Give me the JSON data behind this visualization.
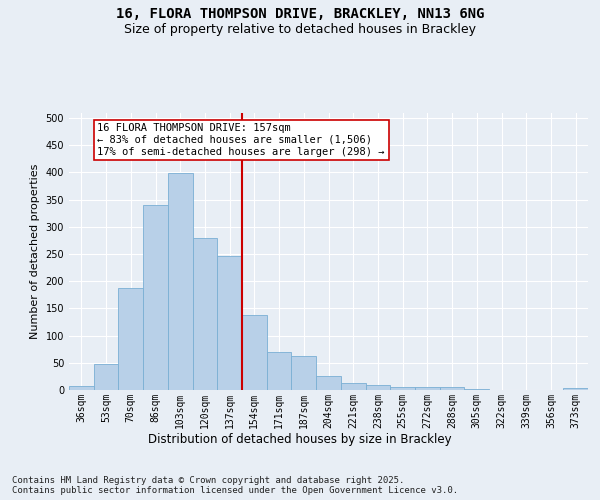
{
  "title1": "16, FLORA THOMPSON DRIVE, BRACKLEY, NN13 6NG",
  "title2": "Size of property relative to detached houses in Brackley",
  "xlabel": "Distribution of detached houses by size in Brackley",
  "ylabel": "Number of detached properties",
  "categories": [
    "36sqm",
    "53sqm",
    "70sqm",
    "86sqm",
    "103sqm",
    "120sqm",
    "137sqm",
    "154sqm",
    "171sqm",
    "187sqm",
    "204sqm",
    "221sqm",
    "238sqm",
    "255sqm",
    "272sqm",
    "288sqm",
    "305sqm",
    "322sqm",
    "339sqm",
    "356sqm",
    "373sqm"
  ],
  "values": [
    8,
    47,
    188,
    340,
    398,
    280,
    247,
    137,
    70,
    62,
    26,
    12,
    9,
    6,
    5,
    5,
    2,
    0,
    0,
    0,
    3
  ],
  "bar_color": "#b8d0e8",
  "bar_edge_color": "#7aafd4",
  "vline_bin_index": 7,
  "annotation_title": "16 FLORA THOMPSON DRIVE: 157sqm",
  "annotation_line1": "← 83% of detached houses are smaller (1,506)",
  "annotation_line2": "17% of semi-detached houses are larger (298) →",
  "annotation_box_color": "#ffffff",
  "annotation_box_edge_color": "#cc0000",
  "vline_color": "#cc0000",
  "background_color": "#e8eef5",
  "plot_bg_color": "#e8eef5",
  "yticks": [
    0,
    50,
    100,
    150,
    200,
    250,
    300,
    350,
    400,
    450,
    500
  ],
  "ylim": [
    0,
    510
  ],
  "footer": "Contains HM Land Registry data © Crown copyright and database right 2025.\nContains public sector information licensed under the Open Government Licence v3.0.",
  "title1_fontsize": 10,
  "title2_fontsize": 9,
  "xlabel_fontsize": 8.5,
  "ylabel_fontsize": 8,
  "tick_fontsize": 7,
  "annotation_fontsize": 7.5,
  "footer_fontsize": 6.5
}
